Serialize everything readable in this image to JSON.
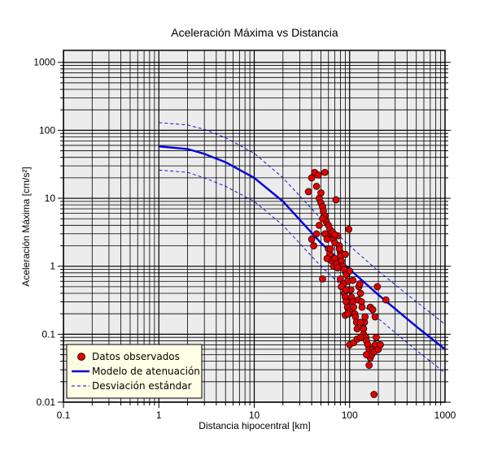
{
  "chart_data": {
    "type": "scatter",
    "title": "Aceleración Máxima vs Distancia",
    "xlabel": "Distancia hipocentral [km]",
    "ylabel": "Aceleración Máxima [cm/s²]",
    "x_scale": "log",
    "y_scale": "log",
    "xlim": [
      0.1,
      1000
    ],
    "ylim": [
      0.01,
      1500
    ],
    "grid": true,
    "x_ticks": [
      {
        "value": 0.1,
        "label": "0.1"
      },
      {
        "value": 1,
        "label": "1"
      },
      {
        "value": 10,
        "label": "10"
      },
      {
        "value": 100,
        "label": "100"
      },
      {
        "value": 1000,
        "label": "1000"
      }
    ],
    "y_ticks": [
      {
        "value": 0.01,
        "label": "0.01"
      },
      {
        "value": 0.1,
        "label": "0.1"
      },
      {
        "value": 1,
        "label": "1"
      },
      {
        "value": 10,
        "label": "10"
      },
      {
        "value": 100,
        "label": "100"
      },
      {
        "value": 1000,
        "label": "1000"
      }
    ],
    "legend_position": "bottom-left",
    "series": [
      {
        "name": "Datos observados",
        "kind": "points",
        "color": "#e00000",
        "points": [
          [
            37,
            12.5
          ],
          [
            40,
            20
          ],
          [
            43,
            24
          ],
          [
            45,
            15
          ],
          [
            48,
            10
          ],
          [
            50,
            8.5
          ],
          [
            52,
            7.5
          ],
          [
            55,
            24
          ],
          [
            47,
            22
          ],
          [
            50,
            12
          ],
          [
            53,
            6.5
          ],
          [
            55,
            5.5
          ],
          [
            57,
            4.5
          ],
          [
            60,
            4
          ],
          [
            62,
            3.5
          ],
          [
            64,
            3
          ],
          [
            67,
            2.5
          ],
          [
            70,
            2.2
          ],
          [
            72,
            9.5
          ],
          [
            75,
            2.8
          ],
          [
            78,
            2
          ],
          [
            80,
            1.6
          ],
          [
            40,
            2.5
          ],
          [
            42,
            2
          ],
          [
            45,
            3
          ],
          [
            48,
            4
          ],
          [
            52,
            5
          ],
          [
            55,
            3
          ],
          [
            58,
            2.5
          ],
          [
            60,
            1.8
          ],
          [
            62,
            1.5
          ],
          [
            65,
            1.2
          ],
          [
            68,
            1
          ],
          [
            70,
            1.3
          ],
          [
            73,
            1.1
          ],
          [
            75,
            0.95
          ],
          [
            78,
            1.8
          ],
          [
            80,
            1.4
          ],
          [
            82,
            1.2
          ],
          [
            85,
            1
          ],
          [
            88,
            0.9
          ],
          [
            90,
            1.5
          ],
          [
            92,
            0.75
          ],
          [
            95,
            0.6
          ],
          [
            98,
            3.5
          ],
          [
            100,
            0.85
          ],
          [
            52,
            0.65
          ],
          [
            58,
            1.3
          ],
          [
            63,
            1.8
          ],
          [
            66,
            3.2
          ],
          [
            70,
            2.9
          ],
          [
            75,
            0.95
          ],
          [
            80,
            0.65
          ],
          [
            85,
            0.5
          ],
          [
            88,
            0.4
          ],
          [
            90,
            0.35
          ],
          [
            92,
            0.3
          ],
          [
            95,
            0.25
          ],
          [
            98,
            0.2
          ],
          [
            100,
            0.22
          ],
          [
            103,
            0.45
          ],
          [
            105,
            0.35
          ],
          [
            108,
            0.3
          ],
          [
            110,
            0.25
          ],
          [
            113,
            0.2
          ],
          [
            115,
            0.18
          ],
          [
            118,
            0.15
          ],
          [
            120,
            0.12
          ],
          [
            123,
            0.32
          ],
          [
            125,
            0.5
          ],
          [
            128,
            0.55
          ],
          [
            130,
            0.4
          ],
          [
            133,
            0.3
          ],
          [
            135,
            0.25
          ],
          [
            138,
            0.14
          ],
          [
            140,
            0.1
          ],
          [
            143,
            0.15
          ],
          [
            145,
            0.18
          ],
          [
            148,
            0.09
          ],
          [
            150,
            0.08
          ],
          [
            155,
            0.07
          ],
          [
            160,
            0.06
          ],
          [
            165,
            0.045
          ],
          [
            170,
            0.05
          ],
          [
            175,
            0.06
          ],
          [
            180,
            0.055
          ],
          [
            185,
            0.07
          ],
          [
            190,
            0.09
          ],
          [
            195,
            0.5
          ],
          [
            200,
            0.06
          ],
          [
            210,
            0.07
          ],
          [
            240,
            0.32
          ],
          [
            100,
            0.07
          ],
          [
            110,
            0.075
          ],
          [
            120,
            0.085
          ],
          [
            130,
            0.09
          ],
          [
            150,
            0.05
          ],
          [
            160,
            0.035
          ],
          [
            180,
            0.013
          ],
          [
            90,
            0.19
          ],
          [
            96,
            0.2
          ],
          [
            130,
            0.15
          ],
          [
            140,
            0.12
          ],
          [
            165,
            0.25
          ],
          [
            175,
            0.23
          ],
          [
            185,
            0.18
          ],
          [
            86,
            0.55
          ],
          [
            82,
            0.5
          ],
          [
            92,
            0.45
          ],
          [
            108,
            0.62
          ]
        ]
      },
      {
        "name": "Modelo de atenuación",
        "kind": "line",
        "color": "#0000dd",
        "x": [
          1,
          2,
          3,
          5,
          10,
          20,
          50,
          100,
          200,
          500,
          1000
        ],
        "y": [
          58,
          53,
          45,
          34,
          20,
          9,
          2.2,
          0.9,
          0.38,
          0.13,
          0.06
        ]
      },
      {
        "name": "Desviación estándar",
        "kind": "dashed-band",
        "color": "#0000dd",
        "upper": {
          "x": [
            1,
            2,
            3,
            5,
            10,
            20,
            50,
            100,
            200,
            500,
            1000
          ],
          "y": [
            130,
            120,
            103,
            78,
            46,
            20,
            5,
            2,
            0.85,
            0.3,
            0.14
          ]
        },
        "lower": {
          "x": [
            1,
            2,
            3,
            5,
            10,
            20,
            50,
            100,
            200,
            500,
            1000
          ],
          "y": [
            26,
            24,
            20,
            15,
            9,
            4,
            1,
            0.4,
            0.17,
            0.058,
            0.027
          ]
        }
      }
    ]
  }
}
